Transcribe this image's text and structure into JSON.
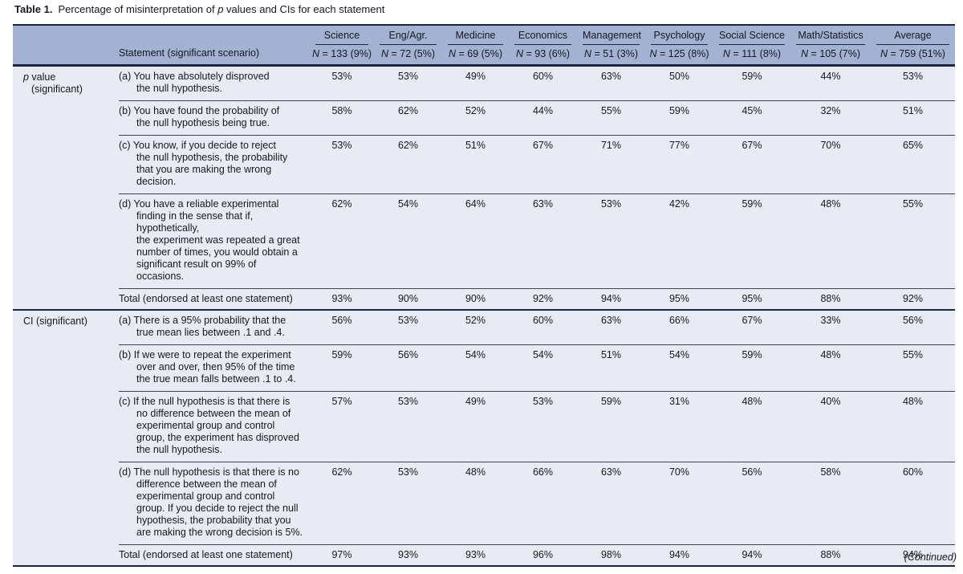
{
  "colors": {
    "border": "#1c2440",
    "thin_rule": "#3a4152",
    "header_bg": "#a3b1d2",
    "body_bg": "#e8ebf3",
    "text": "#15181f"
  },
  "title": {
    "bold": "Table 1.",
    "pre": "Percentage of misinterpretation of ",
    "italic": "p",
    "post": " values and CIs for each statement"
  },
  "header": {
    "statement_label": "Statement (significant scenario)",
    "columns": [
      {
        "name": "Science",
        "n": "N = 133 (9%)"
      },
      {
        "name": "Eng/Agr.",
        "n": "N = 72 (5%)"
      },
      {
        "name": "Medicine",
        "n": "N = 69 (5%)"
      },
      {
        "name": "Economics",
        "n": "N = 93 (6%)"
      },
      {
        "name": "Management",
        "n": "N = 51 (3%)"
      },
      {
        "name": "Psychology",
        "n": "N = 125 (8%)"
      },
      {
        "name": "Social Science",
        "n": "N = 111 (8%)"
      },
      {
        "name": "Math/Statistics",
        "n": "N = 105 (7%)"
      },
      {
        "name": "Average",
        "n": "N = 759 (51%)"
      }
    ]
  },
  "sections": [
    {
      "label_italic": "p",
      "label_rest": " value",
      "label_line2": "(significant)",
      "rows": [
        {
          "statement": "(a) You have absolutely disproved\nthe null hypothesis.",
          "values": [
            "53%",
            "53%",
            "49%",
            "60%",
            "63%",
            "50%",
            "59%",
            "44%",
            "53%"
          ]
        },
        {
          "statement": "(b) You have found the probability of\nthe null hypothesis being true.",
          "values": [
            "58%",
            "62%",
            "52%",
            "44%",
            "55%",
            "59%",
            "45%",
            "32%",
            "51%"
          ]
        },
        {
          "statement": "(c) You know, if you decide to reject\nthe null hypothesis, the probability\nthat you are making the wrong\ndecision.",
          "values": [
            "53%",
            "62%",
            "51%",
            "67%",
            "71%",
            "77%",
            "67%",
            "70%",
            "65%"
          ]
        },
        {
          "statement": "(d) You have a reliable experimental\nfinding in the sense that if,\nhypothetically,\nthe experiment was repeated a great\nnumber of times, you would obtain a\nsignificant result on 99% of\noccasions.",
          "values": [
            "62%",
            "54%",
            "64%",
            "63%",
            "53%",
            "42%",
            "59%",
            "48%",
            "55%"
          ]
        },
        {
          "statement": "Total (endorsed at least one statement)",
          "total": true,
          "values": [
            "93%",
            "90%",
            "90%",
            "92%",
            "94%",
            "95%",
            "95%",
            "88%",
            "92%"
          ]
        }
      ]
    },
    {
      "label_italic": "",
      "label_rest": "CI (significant)",
      "label_line2": "",
      "rows": [
        {
          "statement": "(a) There is a 95% probability that the\ntrue mean lies between .1 and .4.",
          "values": [
            "56%",
            "53%",
            "52%",
            "60%",
            "63%",
            "66%",
            "67%",
            "33%",
            "56%"
          ]
        },
        {
          "statement": "(b) If we were to repeat the experiment\nover and over, then 95% of the time\nthe true mean falls between .1 to .4.",
          "values": [
            "59%",
            "56%",
            "54%",
            "54%",
            "51%",
            "54%",
            "59%",
            "48%",
            "55%"
          ]
        },
        {
          "statement": "(c) If the null hypothesis is that there is\nno difference between the mean of\nexperimental group and control\ngroup, the experiment has disproved\nthe null hypothesis.",
          "values": [
            "57%",
            "53%",
            "49%",
            "53%",
            "59%",
            "31%",
            "48%",
            "40%",
            "48%"
          ]
        },
        {
          "statement": "(d) The null hypothesis is that there is no\ndifference between the mean of\nexperimental group and control\ngroup. If you decide to reject the null\nhypothesis, the probability that you\nare making the wrong decision is 5%.",
          "values": [
            "62%",
            "53%",
            "48%",
            "66%",
            "63%",
            "70%",
            "56%",
            "58%",
            "60%"
          ]
        },
        {
          "statement": "Total (endorsed at least one statement)",
          "total": true,
          "values": [
            "97%",
            "93%",
            "93%",
            "96%",
            "98%",
            "94%",
            "94%",
            "88%",
            "94%"
          ]
        }
      ]
    }
  ],
  "footer": "(Continued)"
}
